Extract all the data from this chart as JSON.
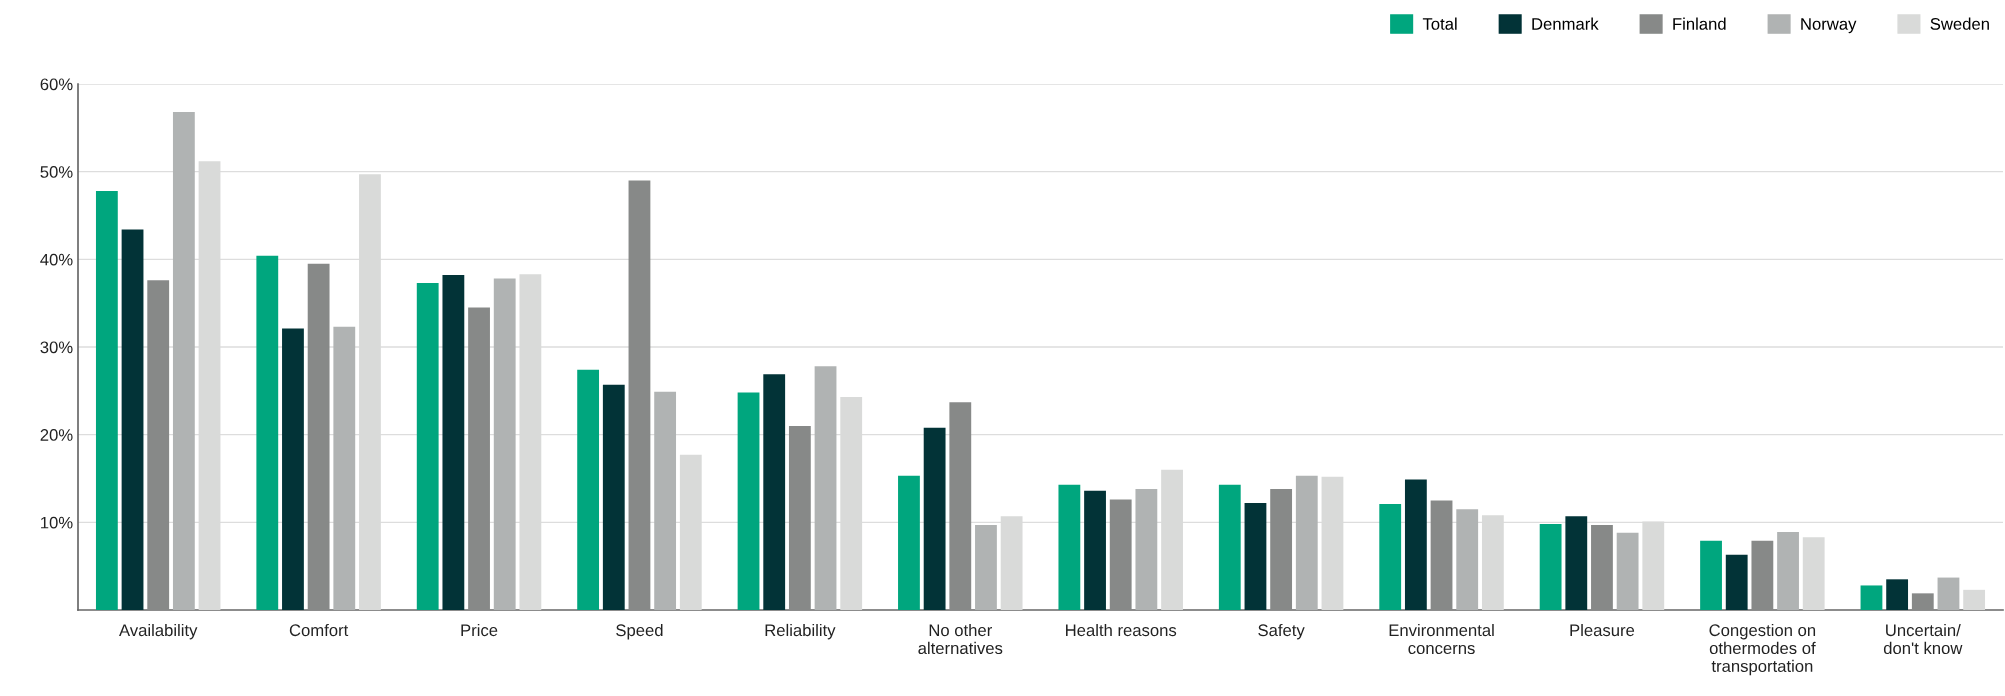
{
  "chart_data": {
    "type": "bar",
    "categories": [
      "Availability",
      "Comfort",
      "Price",
      "Speed",
      "Reliability",
      "No other\nalternatives",
      "Health reasons",
      "Safety",
      "Environmental\nconcerns",
      "Pleasure",
      "Congestion on\nothermodes of\ntransportation",
      "Uncertain/\ndon't know"
    ],
    "series": [
      {
        "name": "Total",
        "color": "#00a67e",
        "values": [
          47.8,
          40.4,
          37.3,
          27.4,
          24.8,
          15.3,
          14.3,
          14.3,
          12.1,
          9.8,
          7.9,
          2.8
        ]
      },
      {
        "name": "Denmark",
        "color": "#023337",
        "values": [
          43.4,
          32.1,
          38.2,
          25.7,
          26.9,
          20.8,
          13.6,
          12.2,
          14.9,
          10.7,
          6.3,
          3.5
        ]
      },
      {
        "name": "Finland",
        "color": "#878988",
        "values": [
          37.6,
          39.5,
          34.5,
          49.0,
          21.0,
          23.7,
          12.6,
          13.8,
          12.5,
          9.7,
          7.9,
          1.9
        ]
      },
      {
        "name": "Norway",
        "color": "#b0b3b3",
        "values": [
          56.8,
          32.3,
          37.8,
          24.9,
          27.8,
          9.7,
          13.8,
          15.3,
          11.5,
          8.8,
          8.9,
          3.7
        ]
      },
      {
        "name": "Sweden",
        "color": "#d9dad9",
        "values": [
          51.2,
          49.7,
          38.3,
          17.7,
          24.3,
          10.7,
          16.0,
          15.2,
          10.8,
          10.1,
          8.3,
          2.3
        ]
      }
    ],
    "ylim": [
      0,
      60
    ],
    "yticks": [
      {
        "value": 10,
        "label": "10%"
      },
      {
        "value": 20,
        "label": "20%"
      },
      {
        "value": 30,
        "label": "30%"
      },
      {
        "value": 40,
        "label": "40%"
      },
      {
        "value": 50,
        "label": "50%"
      },
      {
        "value": 60,
        "label": "60%"
      }
    ],
    "grid": "y",
    "legend": "top right"
  }
}
